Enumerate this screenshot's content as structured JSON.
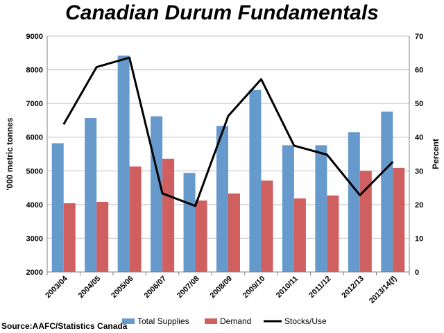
{
  "chart_data": {
    "type": "bar",
    "title": "Canadian Durum Fundamentals",
    "source": "Source:AAFC/Statistics Canada",
    "categories": [
      "2003/04",
      "2004/05",
      "2005/06",
      "2006/07",
      "2007/08",
      "2008/09",
      "2009/10",
      "2010/11",
      "2011/12",
      "2012/13",
      "2013/14(f)"
    ],
    "series": [
      {
        "name": "Total Supplies",
        "axis": "left",
        "kind": "bar",
        "color": "#6699cc",
        "values": [
          5820,
          6570,
          8420,
          6620,
          4940,
          6330,
          7400,
          5760,
          5760,
          6150,
          6760
        ]
      },
      {
        "name": "Demand",
        "axis": "left",
        "kind": "bar",
        "color": "#d06060",
        "values": [
          4040,
          4080,
          5130,
          5360,
          4120,
          4330,
          4710,
          4180,
          4270,
          5000,
          5090
        ]
      },
      {
        "name": "Stocks/Use",
        "axis": "right",
        "kind": "line",
        "color": "#000000",
        "values": [
          43.8,
          60.8,
          63.6,
          23.3,
          19.6,
          46.3,
          57.2,
          37.5,
          34.8,
          22.8,
          32.7
        ]
      }
    ],
    "ylabel": "'000 metric tonnes",
    "ylabel_right": "Percent",
    "ylim": [
      2000,
      9000
    ],
    "yticks": [
      "2000",
      "3000",
      "4000",
      "5000",
      "6000",
      "7000",
      "8000",
      "9000"
    ],
    "ylim_right": [
      0,
      70
    ],
    "yticks_right": [
      "0",
      "10",
      "20",
      "30",
      "40",
      "50",
      "60",
      "70"
    ],
    "grid": true,
    "legend_position": "bottom"
  }
}
